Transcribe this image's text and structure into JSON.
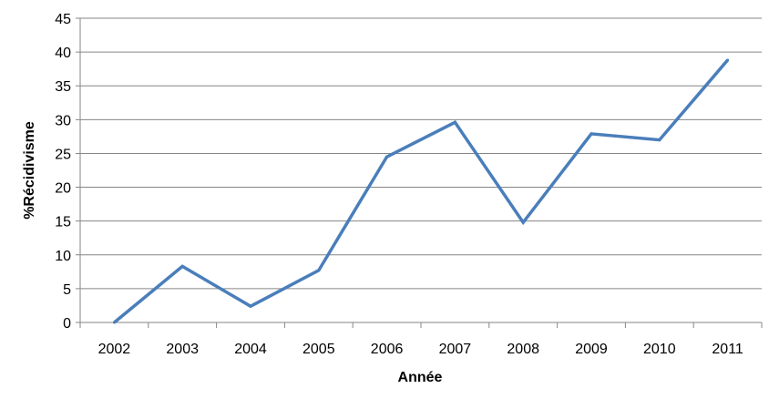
{
  "chart_data": {
    "type": "line",
    "title": "",
    "xlabel": "Année",
    "ylabel": "%Récidivisme",
    "categories": [
      "2002",
      "2003",
      "2004",
      "2005",
      "2006",
      "2007",
      "2008",
      "2009",
      "2010",
      "2011"
    ],
    "series": [
      {
        "values": [
          0,
          8.3,
          2.4,
          7.7,
          24.5,
          29.6,
          14.8,
          27.9,
          27.0,
          38.8
        ],
        "color": "#4a7ebb"
      }
    ],
    "ylim": [
      0,
      45
    ],
    "yticks": [
      0,
      5,
      10,
      15,
      20,
      25,
      30,
      35,
      40,
      45
    ],
    "grid": true,
    "legend": "none"
  }
}
